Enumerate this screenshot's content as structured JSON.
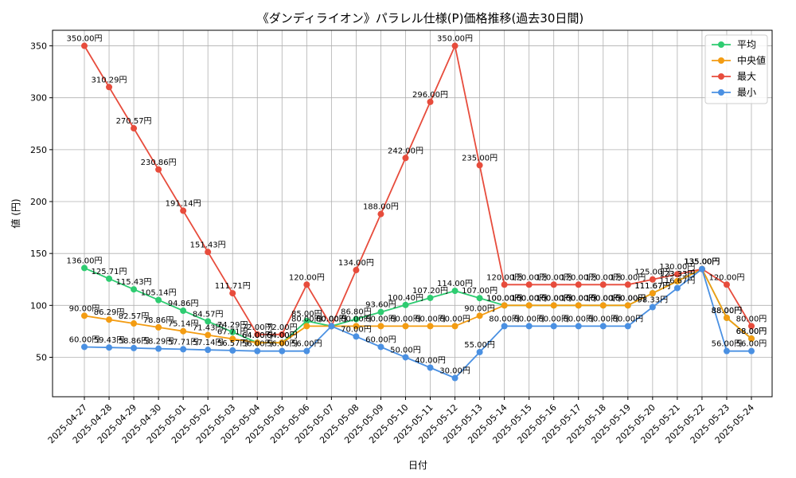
{
  "chart_data": {
    "type": "line",
    "title": "《ダンディライオン》パラレル仕様(P)価格推移(過去30日間)",
    "xlabel": "日付",
    "ylabel": "値 (円)",
    "ylim": [
      12,
      365
    ],
    "yticks": [
      50,
      100,
      150,
      200,
      250,
      300,
      350
    ],
    "grid": true,
    "legend_position": "top-right",
    "label_suffix": "円",
    "categories": [
      "2025-04-27",
      "2025-04-28",
      "2025-04-29",
      "2025-04-30",
      "2025-05-01",
      "2025-05-02",
      "2025-05-03",
      "2025-05-04",
      "2025-05-05",
      "2025-05-06",
      "2025-05-07",
      "2025-05-08",
      "2025-05-09",
      "2025-05-10",
      "2025-05-11",
      "2025-05-12",
      "2025-05-13",
      "2025-05-14",
      "2025-05-15",
      "2025-05-16",
      "2025-05-17",
      "2025-05-18",
      "2025-05-19",
      "2025-05-20",
      "2025-05-21",
      "2025-05-22",
      "2025-05-23",
      "2025-05-24"
    ],
    "series": [
      {
        "name": "平均",
        "color": "#2ecc71",
        "values": [
          136.0,
          125.71,
          115.43,
          105.14,
          94.86,
          84.57,
          74.29,
          64.0,
          64.0,
          85.0,
          80.0,
          86.8,
          93.6,
          100.4,
          107.2,
          114.0,
          107.0,
          100.0,
          100.0,
          100.0,
          100.0,
          100.0,
          100.0,
          111.67,
          123.33,
          135.0,
          88.0,
          68.0
        ]
      },
      {
        "name": "中央値",
        "color": "#f39c12",
        "values": [
          90.0,
          86.29,
          82.57,
          78.86,
          75.14,
          71.43,
          67.71,
          64.0,
          64.0,
          80.0,
          80.0,
          80.0,
          80.0,
          80.0,
          80.0,
          80.0,
          90.0,
          100.0,
          100.0,
          100.0,
          100.0,
          100.0,
          100.0,
          111.67,
          123.33,
          135.0,
          88.0,
          68.0
        ]
      },
      {
        "name": "最大",
        "color": "#e74c3c",
        "values": [
          350.0,
          310.29,
          270.57,
          230.86,
          191.14,
          151.43,
          111.71,
          72.0,
          72.0,
          120.0,
          80.0,
          134.0,
          188.0,
          242.0,
          296.0,
          350.0,
          235.0,
          120.0,
          120.0,
          120.0,
          120.0,
          120.0,
          120.0,
          125.0,
          130.0,
          135.0,
          120.0,
          80.0
        ]
      },
      {
        "name": "最小",
        "color": "#4a90e2",
        "values": [
          60.0,
          59.43,
          58.86,
          58.29,
          57.71,
          57.14,
          56.57,
          56.0,
          56.0,
          56.0,
          80.0,
          70.0,
          60.0,
          50.0,
          40.0,
          30.0,
          55.0,
          80.0,
          80.0,
          80.0,
          80.0,
          80.0,
          80.0,
          98.33,
          116.67,
          135.0,
          56.0,
          56.0
        ]
      }
    ]
  }
}
